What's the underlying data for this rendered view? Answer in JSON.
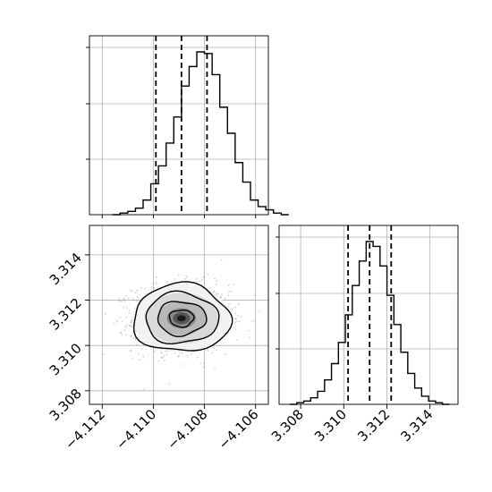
{
  "colors": {
    "ink": "#000000",
    "grid": "#b0b0b0",
    "scatter": "#808080",
    "background": "#ffffff"
  },
  "chart_data": [
    {
      "panel": "top-left",
      "type": "histogram",
      "parameter_index": 0,
      "xlim": [
        -4.1125,
        -4.1055
      ],
      "hist_x": [
        -4.1116,
        -4.1111,
        -4.1106,
        -4.1101,
        -4.1096,
        -4.1091,
        -4.1086,
        -4.1081,
        -4.1076,
        -4.1071,
        -4.1066,
        -4.1061,
        -4.1056
      ],
      "hist_y": [
        0,
        1,
        2,
        4,
        9,
        19,
        30,
        44,
        60,
        79,
        91,
        100,
        99,
        86,
        66,
        50,
        32,
        20,
        9,
        5,
        3,
        1,
        0
      ],
      "hist_edges": [
        -4.1116,
        -4.1113,
        -4.111,
        -4.1107,
        -4.1104,
        -4.1101,
        -4.1098,
        -4.1095,
        -4.1092,
        -4.1089,
        -4.1086,
        -4.1083,
        -4.108,
        -4.1077,
        -4.1074,
        -4.1071,
        -4.1068,
        -4.1065,
        -4.1062,
        -4.1059,
        -4.1056,
        -4.1053,
        -4.105,
        -4.1047
      ],
      "quantiles": [
        -4.1099,
        -4.1089,
        -4.1079
      ],
      "grid": true
    },
    {
      "panel": "bottom-left",
      "type": "scatter",
      "x_parameter_index": 0,
      "y_parameter_index": 1,
      "xlim": [
        -4.1125,
        -4.1055
      ],
      "ylim": [
        3.3074,
        3.3153
      ],
      "x_ticks": [
        -4.112,
        -4.11,
        -4.108,
        -4.106
      ],
      "x_tick_labels": [
        "−4.112",
        "−4.110",
        "−4.108",
        "−4.106"
      ],
      "y_ticks": [
        3.308,
        3.31,
        3.312,
        3.314
      ],
      "y_tick_labels": [
        "3.308",
        "3.310",
        "3.312",
        "3.314"
      ],
      "center": [
        -4.1089,
        3.3112
      ],
      "sigma": [
        0.00095,
        0.00075
      ],
      "contour_levels_sigma": [
        0.5,
        1.0,
        1.5,
        2.0
      ],
      "grid": true
    },
    {
      "panel": "bottom-right",
      "type": "histogram",
      "parameter_index": 1,
      "xlim": [
        3.307,
        3.3153
      ],
      "x_ticks": [
        3.308,
        3.31,
        3.312,
        3.314
      ],
      "x_tick_labels": [
        "3.308",
        "3.310",
        "3.312",
        "3.314"
      ],
      "hist_y": [
        0,
        1,
        2,
        4,
        8,
        15,
        25,
        38,
        55,
        73,
        88,
        100,
        97,
        85,
        67,
        49,
        32,
        19,
        10,
        5,
        2,
        1,
        0
      ],
      "hist_edges_range": [
        3.3075,
        3.3149
      ],
      "quantiles": [
        3.3102,
        3.3112,
        3.3122
      ],
      "grid": true
    }
  ]
}
